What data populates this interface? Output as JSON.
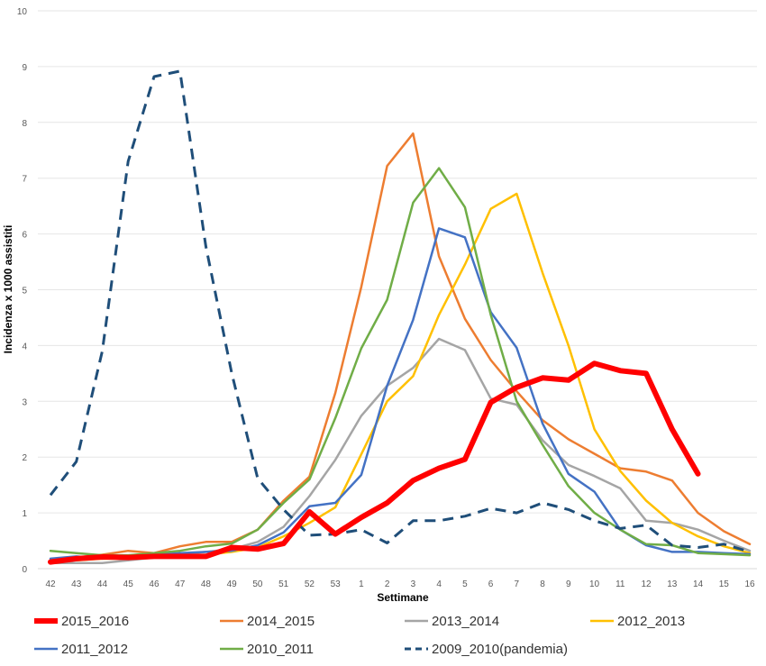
{
  "chart_data": {
    "type": "line",
    "title": "",
    "xlabel": "Settimane",
    "ylabel": "Incidenza x 1000 assistiti",
    "ylim": [
      0,
      10
    ],
    "yticks": [
      0,
      1,
      2,
      3,
      4,
      5,
      6,
      7,
      8,
      9,
      10
    ],
    "grid": true,
    "legend_position": "bottom",
    "categories": [
      "42",
      "43",
      "44",
      "45",
      "46",
      "47",
      "48",
      "49",
      "50",
      "51",
      "52",
      "53",
      "1",
      "2",
      "3",
      "4",
      "5",
      "6",
      "7",
      "8",
      "9",
      "10",
      "11",
      "12",
      "13",
      "14",
      "15",
      "16"
    ],
    "series": [
      {
        "name": "2015_2016",
        "color": "#FF0000",
        "width": 6,
        "dashed": false,
        "values": [
          0.12,
          0.18,
          0.21,
          0.2,
          0.22,
          0.22,
          0.22,
          0.38,
          0.35,
          0.45,
          1.02,
          0.62,
          0.92,
          1.18,
          1.58,
          1.8,
          1.96,
          2.98,
          3.25,
          3.42,
          3.38,
          3.68,
          3.55,
          3.5,
          2.5,
          1.7,
          null,
          null
        ]
      },
      {
        "name": "2014_2015",
        "color": "#ED7D31",
        "width": 2.5,
        "dashed": false,
        "values": [
          0.1,
          0.2,
          0.25,
          0.32,
          0.28,
          0.4,
          0.48,
          0.48,
          0.7,
          1.22,
          1.65,
          3.15,
          5.05,
          7.22,
          7.8,
          5.6,
          4.48,
          3.74,
          3.18,
          2.66,
          2.32,
          2.06,
          1.8,
          1.74,
          1.58,
          1.0,
          0.67,
          0.44
        ]
      },
      {
        "name": "2013_2014",
        "color": "#A5A5A5",
        "width": 2.5,
        "dashed": false,
        "values": [
          0.1,
          0.1,
          0.1,
          0.15,
          0.2,
          0.25,
          0.3,
          0.35,
          0.48,
          0.75,
          1.3,
          1.95,
          2.74,
          3.28,
          3.6,
          4.12,
          3.92,
          3.05,
          2.94,
          2.3,
          1.86,
          1.66,
          1.44,
          0.86,
          0.82,
          0.7,
          0.5,
          0.32
        ]
      },
      {
        "name": "2012_2013",
        "color": "#FFC000",
        "width": 2.5,
        "dashed": false,
        "values": [
          0.15,
          0.15,
          0.18,
          0.18,
          0.2,
          0.22,
          0.25,
          0.3,
          0.38,
          0.58,
          0.82,
          1.1,
          2.05,
          3.0,
          3.45,
          4.55,
          5.45,
          6.45,
          6.72,
          5.3,
          4.0,
          2.5,
          1.75,
          1.22,
          0.82,
          0.58,
          0.4,
          0.28
        ]
      },
      {
        "name": "2011_2012",
        "color": "#4472C4",
        "width": 2.5,
        "dashed": false,
        "values": [
          0.18,
          0.22,
          0.18,
          0.22,
          0.25,
          0.28,
          0.3,
          0.32,
          0.42,
          0.65,
          1.12,
          1.18,
          1.68,
          3.28,
          4.46,
          6.1,
          5.94,
          4.6,
          3.96,
          2.6,
          1.7,
          1.38,
          0.7,
          0.42,
          0.3,
          0.3,
          0.28,
          0.26
        ]
      },
      {
        "name": "2010_2011",
        "color": "#70AD47",
        "width": 2.5,
        "dashed": false,
        "values": [
          0.32,
          0.28,
          0.24,
          0.24,
          0.28,
          0.32,
          0.4,
          0.45,
          0.7,
          1.18,
          1.6,
          2.7,
          3.95,
          4.82,
          6.56,
          7.18,
          6.48,
          4.55,
          3.0,
          2.22,
          1.48,
          1.0,
          0.7,
          0.44,
          0.42,
          0.28,
          0.26,
          0.24
        ]
      },
      {
        "name": "2009_2010(pandemia)",
        "color": "#1F4E79",
        "width": 3,
        "dashed": true,
        "values": [
          1.32,
          1.92,
          3.9,
          7.3,
          8.82,
          8.92,
          5.78,
          3.5,
          1.62,
          1.06,
          0.6,
          0.62,
          0.7,
          0.46,
          0.86,
          0.86,
          0.94,
          1.08,
          1.0,
          1.18,
          1.06,
          0.86,
          0.72,
          0.78,
          0.42,
          0.38,
          0.44,
          0.3
        ]
      }
    ]
  }
}
